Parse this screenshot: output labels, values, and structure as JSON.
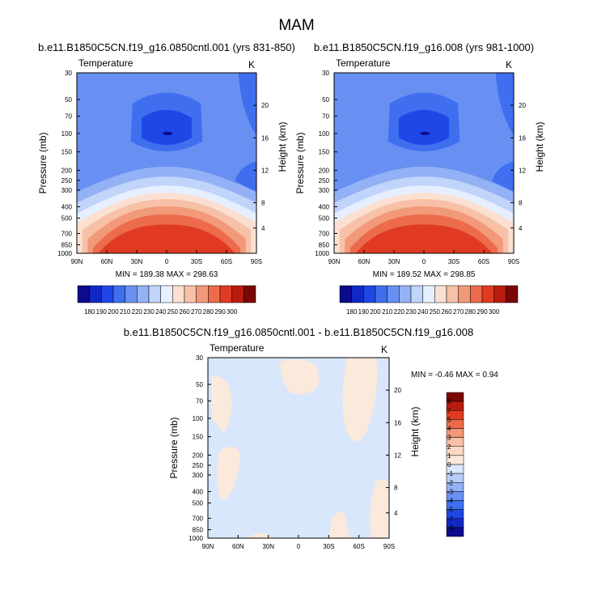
{
  "figure": {
    "title": "MAM"
  },
  "chart_data": [
    {
      "type": "contour",
      "title": "b.e11.B1850C5CN.f19_g16.0850cntl.001 (yrs 831-850)",
      "left_label": "Temperature",
      "right_label": "K",
      "xlabel": "",
      "ylabel": "Pressure (mb)",
      "y2label": "Height (km)",
      "x_ticks": [
        "90N",
        "60N",
        "30N",
        "0",
        "30S",
        "60S",
        "90S"
      ],
      "y_ticks": [
        "30",
        "50",
        "70",
        "100",
        "150",
        "200",
        "250",
        "300",
        "400",
        "500",
        "700",
        "850",
        "1000"
      ],
      "y2_ticks": [
        "20",
        "16",
        "12",
        "8",
        "4"
      ],
      "stats": "MIN = 189.38  MAX = 298.63",
      "min": 189.38,
      "max": 298.63,
      "colorbar": {
        "orientation": "horizontal",
        "labels": [
          "180",
          "190",
          "200",
          "210",
          "220",
          "230",
          "240",
          "250",
          "260",
          "270",
          "280",
          "290",
          "300"
        ],
        "colors": [
          "#0b0b8c",
          "#1128c4",
          "#1f47e6",
          "#3f6fef",
          "#6890f2",
          "#93b1f5",
          "#c1d4f9",
          "#e6efff",
          "#fbe0d2",
          "#f7c1a7",
          "#f2997a",
          "#ec6b4c",
          "#e03b22",
          "#b81c0e",
          "#7a0606"
        ]
      }
    },
    {
      "type": "contour",
      "title": "b.e11.B1850C5CN.f19_g16.008 (yrs 981-1000)",
      "left_label": "Temperature",
      "right_label": "K",
      "xlabel": "",
      "ylabel": "Pressure (mb)",
      "y2label": "Height (km)",
      "x_ticks": [
        "90N",
        "60N",
        "30N",
        "0",
        "30S",
        "60S",
        "90S"
      ],
      "y_ticks": [
        "30",
        "50",
        "70",
        "100",
        "150",
        "200",
        "250",
        "300",
        "400",
        "500",
        "700",
        "850",
        "1000"
      ],
      "y2_ticks": [
        "20",
        "16",
        "12",
        "8",
        "4"
      ],
      "stats": "MIN = 189.52  MAX = 298.85",
      "min": 189.52,
      "max": 298.85,
      "colorbar": {
        "orientation": "horizontal",
        "labels": [
          "180",
          "190",
          "200",
          "210",
          "220",
          "230",
          "240",
          "250",
          "260",
          "270",
          "280",
          "290",
          "300"
        ],
        "colors": [
          "#0b0b8c",
          "#1128c4",
          "#1f47e6",
          "#3f6fef",
          "#6890f2",
          "#93b1f5",
          "#c1d4f9",
          "#e6efff",
          "#fbe0d2",
          "#f7c1a7",
          "#f2997a",
          "#ec6b4c",
          "#e03b22",
          "#b81c0e",
          "#7a0606"
        ]
      }
    },
    {
      "type": "contour",
      "title": "b.e11.B1850C5CN.f19_g16.0850cntl.001 - b.e11.B1850C5CN.f19_g16.008",
      "left_label": "Temperature",
      "right_label": "K",
      "xlabel": "",
      "ylabel": "Pressure (mb)",
      "y2label": "Height (km)",
      "x_ticks": [
        "90N",
        "60N",
        "30N",
        "0",
        "30S",
        "60S",
        "90S"
      ],
      "y_ticks": [
        "30",
        "50",
        "70",
        "100",
        "150",
        "200",
        "250",
        "300",
        "400",
        "500",
        "700",
        "850",
        "1000"
      ],
      "y2_ticks": [
        "20",
        "16",
        "12",
        "8",
        "4"
      ],
      "stats": "MIN = -0.46  MAX =  0.94",
      "min": -0.46,
      "max": 0.94,
      "colorbar": {
        "orientation": "vertical",
        "labels": [
          "9",
          "7",
          "5",
          "4",
          "3",
          "2",
          "1",
          "0",
          "-1",
          "-2",
          "-3",
          "-4",
          "-5",
          "-7",
          "-9"
        ],
        "colors": [
          "#7a0606",
          "#b81c0e",
          "#e03b22",
          "#ec6b4c",
          "#f2997a",
          "#f7c1a7",
          "#fbd9c4",
          "#fbe9dc",
          "#d8e7fb",
          "#b6cdf7",
          "#93b1f5",
          "#6890f2",
          "#3f6fef",
          "#1f47e6",
          "#1128c4",
          "#0b0b8c"
        ]
      }
    }
  ]
}
